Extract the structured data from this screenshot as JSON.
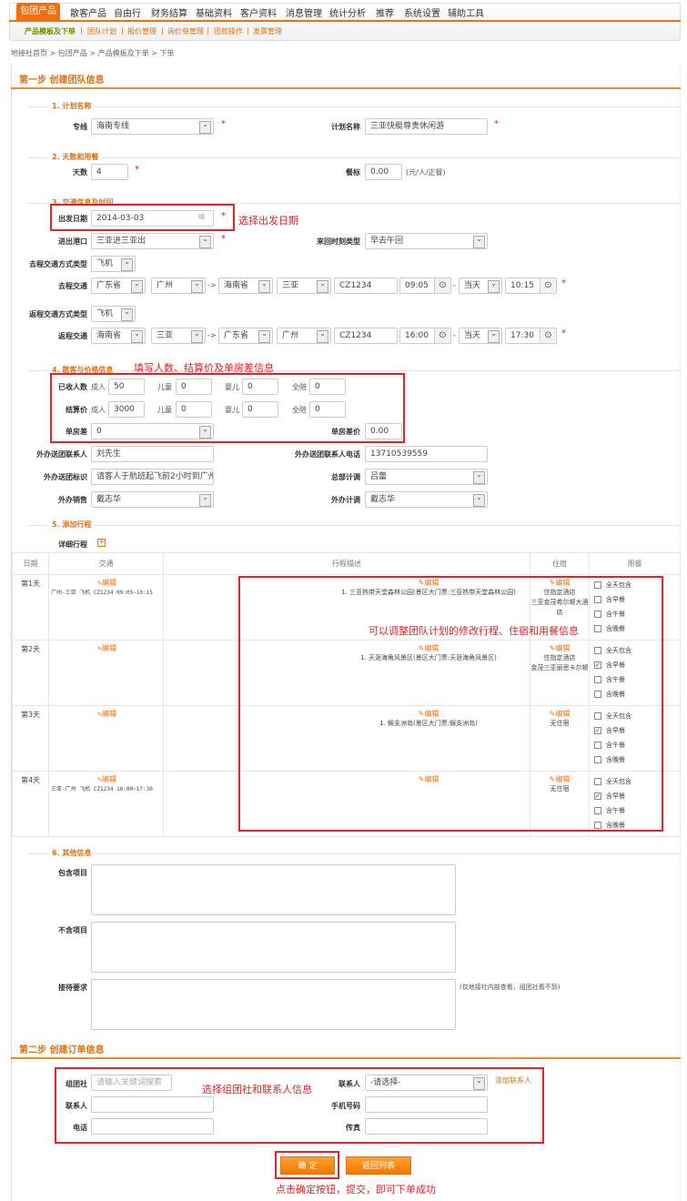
{
  "nav": {
    "tabs": [
      "包团产品",
      "散客产品",
      "自由行",
      "财务结算",
      "基础资料",
      "客户资料",
      "消息管理",
      "统计分析",
      "推荐",
      "系统设置",
      "辅助工具"
    ],
    "subtabs": [
      "产品模板及下单",
      "团队计划",
      "报价管理",
      "询价单管理",
      "团款操作",
      "发票管理"
    ]
  },
  "breadcrumb": "地接社首页 > 包团产品 > 产品模板及下单 > 下单",
  "step1": {
    "title": "第一步  创建团队信息",
    "s1": {
      "title": "1. 计划名称",
      "line_label": "专线",
      "line_value": "海南专线",
      "plan_label": "计划名称",
      "plan_value": "三亚快艇尊贵休闲游"
    },
    "s2": {
      "title": "2. 天数和用餐",
      "days_label": "天数",
      "days_value": "4",
      "meal_label": "餐标",
      "meal_value": "0.00",
      "meal_unit": "(元/人/正餐)"
    },
    "s3": {
      "title": "3. 交通信息及时间",
      "date_label": "出发日期",
      "date_value": "2014-03-03",
      "date_note": "选择出发日期",
      "port_label": "进出港口",
      "port_value": "三亚进三亚出",
      "timetype_label": "来回时刻类型",
      "timetype_value": "早去午回",
      "go_type_label": "去程交通方式类型",
      "go_type_value": "飞机",
      "go_label": "去程交通",
      "go": {
        "from_prov": "广东省",
        "from_city": "广州",
        "to_prov": "海南省",
        "to_city": "三亚",
        "flight": "CZ1234",
        "dep": "09:05",
        "day": "当天",
        "arr": "10:15"
      },
      "back_type_label": "返程交通方式类型",
      "back_type_value": "飞机",
      "back_label": "返程交通",
      "back": {
        "from_prov": "海南省",
        "from_city": "三亚",
        "to_prov": "广东省",
        "to_city": "广州",
        "flight": "CZ1234",
        "dep": "16:00",
        "day": "当天",
        "arr": "17:30"
      },
      "arrow": "->",
      "dash": "-"
    },
    "s4": {
      "title": "4. 散客与价格信息",
      "note": "填写人数、结算价及单房差信息",
      "count_label": "已收人数",
      "price_label": "结算价",
      "adult": "成人",
      "child": "儿童",
      "infant": "婴儿",
      "escort": "全陪",
      "counts": [
        "50",
        "0",
        "0",
        "0"
      ],
      "prices": [
        "3000",
        "0",
        "0",
        "0"
      ],
      "single_label": "单房差",
      "single_value": "0",
      "single_price_label": "单房差价",
      "single_price_value": "0.00",
      "contact_label": "外办送团联系人",
      "contact_value": "刘先生",
      "phone_label": "外办送团联系人电话",
      "phone_value": "13710539559",
      "mark_label": "外办送团标识",
      "mark_value": "请客人于航班起飞前2小时到广州",
      "hq_label": "总部计调",
      "hq_value": "吕蕾",
      "sales_label": "外办销售",
      "sales_value": "戴志华",
      "op_label": "外办计调",
      "op_value": "戴志华"
    },
    "s5": {
      "title": "5. 添加行程",
      "detail_label": "详细行程",
      "note": "可以调整团队计划的修改行程、住宿和用餐信息",
      "headers": [
        "日期",
        "交通",
        "行程描述",
        "住宿",
        "用餐"
      ],
      "edit": "编辑",
      "meals": [
        "全天包含",
        "含早餐",
        "含午餐",
        "含晚餐"
      ],
      "rows": [
        {
          "day": "第1天",
          "traffic": "广州-三亚 飞机 CZ1234 09:05~10:15",
          "desc": "1. 三亚热带天堂森林公园(景区大门票:三亚热带天堂森林公园)",
          "stay": [
            "住指定酒店",
            "三亚金茂希尔顿大酒店"
          ],
          "checked": [
            false,
            false,
            false,
            false
          ]
        },
        {
          "day": "第2天",
          "traffic": "",
          "desc": "1. 天涯海角风景区(景区大门票:天涯海角风景区)",
          "stay": [
            "住指定酒店",
            "金茂三亚丽思卡尔顿"
          ],
          "checked": [
            false,
            true,
            false,
            false
          ]
        },
        {
          "day": "第3天",
          "traffic": "",
          "desc": "1. 蜈支洲岛(景区大门票:蜈支洲岛)",
          "stay": [
            "无住宿"
          ],
          "checked": [
            false,
            true,
            false,
            false
          ]
        },
        {
          "day": "第4天",
          "traffic": "三亚-广州 飞机 CZ1234 16:00~17:30",
          "desc": "",
          "stay": [
            "无住宿"
          ],
          "checked": [
            false,
            true,
            false,
            false
          ]
        }
      ]
    },
    "s6": {
      "title": "6. 其他信息",
      "include_label": "包含项目",
      "exclude_label": "不含项目",
      "reception_label": "接待要求",
      "reception_note": "(仅地接社内部查看，组团社看不到)"
    }
  },
  "step2": {
    "title": "第二步  创建订单信息",
    "note": "选择组团社和联系人信息",
    "agency_label": "组团社",
    "agency_placeholder": "请输入关键词搜索",
    "contact_select_label": "联系人",
    "contact_select_value": "-请选择-",
    "add_contact": "添加联系人",
    "contact_label": "联系人",
    "mobile_label": "手机号码",
    "phone_label": "电话",
    "fax_label": "传真"
  },
  "actions": {
    "confirm": "确 定",
    "back": "返回列表",
    "note": "点击确定按钮，提交，即可下单成功"
  },
  "colors": {
    "accent": "#f07010",
    "annotation": "#e8202a"
  }
}
